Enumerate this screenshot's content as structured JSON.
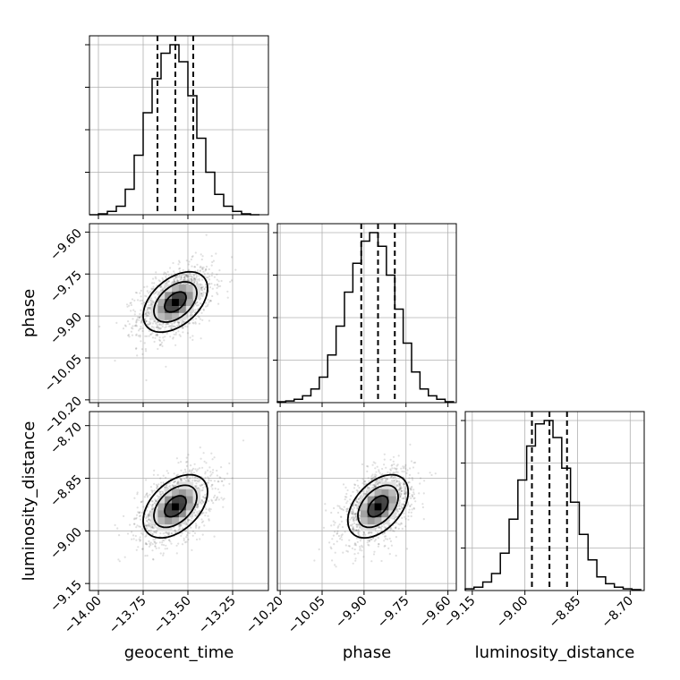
{
  "chart_data": {
    "type": "corner",
    "parameters": [
      {
        "name": "geocent_time",
        "label": "geocent_time",
        "range": [
          -14.05,
          -13.05
        ],
        "ticks": [
          -14.0,
          -13.75,
          -13.5,
          -13.25
        ],
        "tick_labels": [
          "−14.00",
          "−13.75",
          "−13.50",
          "−13.25"
        ],
        "mean": -13.57,
        "sigma": 0.1,
        "quantiles": [
          -13.67,
          -13.57,
          -13.47
        ]
      },
      {
        "name": "phase",
        "label": "phase",
        "range": [
          -10.21,
          -9.57
        ],
        "ticks": [
          -10.2,
          -10.05,
          -9.9,
          -9.75,
          -9.6
        ],
        "tick_labels": [
          "−10.20",
          "−10.05",
          "−9.90",
          "−9.75",
          "−9.60"
        ],
        "mean": -9.85,
        "sigma": 0.06,
        "quantiles": [
          -9.91,
          -9.85,
          -9.79
        ]
      },
      {
        "name": "luminosity_distance",
        "label": "luminosity_distance",
        "range": [
          -9.17,
          -8.66
        ],
        "ticks": [
          -9.15,
          -9.0,
          -8.85,
          -8.7
        ],
        "tick_labels": [
          "−9.15",
          "−9.00",
          "−8.85",
          "−8.70"
        ],
        "mean": -8.93,
        "sigma": 0.05,
        "quantiles": [
          -8.98,
          -8.93,
          -8.88
        ]
      }
    ],
    "histograms": [
      {
        "param": "geocent_time",
        "bin_edges": [
          -14.05,
          -14.0,
          -13.95,
          -13.9,
          -13.85,
          -13.8,
          -13.75,
          -13.7,
          -13.65,
          -13.6,
          -13.55,
          -13.5,
          -13.45,
          -13.4,
          -13.35,
          -13.3,
          -13.25,
          -13.2,
          -13.15,
          -13.1
        ],
        "counts": [
          0.0,
          0.005,
          0.02,
          0.05,
          0.15,
          0.35,
          0.6,
          0.8,
          0.95,
          1.0,
          0.9,
          0.7,
          0.45,
          0.25,
          0.12,
          0.05,
          0.02,
          0.005,
          0.0
        ]
      },
      {
        "param": "phase",
        "bin_edges": [
          -10.21,
          -10.18,
          -10.15,
          -10.12,
          -10.09,
          -10.06,
          -10.03,
          -10.0,
          -9.97,
          -9.94,
          -9.91,
          -9.88,
          -9.85,
          -9.82,
          -9.79,
          -9.76,
          -9.73,
          -9.7,
          -9.67,
          -9.64,
          -9.61,
          -9.58
        ],
        "counts": [
          0.005,
          0.01,
          0.02,
          0.04,
          0.08,
          0.15,
          0.28,
          0.45,
          0.65,
          0.82,
          0.95,
          1.0,
          0.92,
          0.75,
          0.55,
          0.35,
          0.18,
          0.08,
          0.04,
          0.02,
          0.005
        ]
      },
      {
        "param": "luminosity_distance",
        "bin_edges": [
          -9.17,
          -9.145,
          -9.12,
          -9.095,
          -9.07,
          -9.045,
          -9.02,
          -8.995,
          -8.97,
          -8.945,
          -8.92,
          -8.895,
          -8.87,
          -8.845,
          -8.82,
          -8.795,
          -8.77,
          -8.745,
          -8.72,
          -8.695,
          -8.67
        ],
        "counts": [
          0.01,
          0.02,
          0.05,
          0.1,
          0.22,
          0.42,
          0.65,
          0.85,
          0.98,
          1.0,
          0.9,
          0.72,
          0.52,
          0.33,
          0.18,
          0.08,
          0.04,
          0.02,
          0.01,
          0.005
        ]
      }
    ],
    "correlations": {
      "geocent_time__phase": 0.45,
      "geocent_time__luminosity_distance": 0.45,
      "phase__luminosity_distance": 0.45
    },
    "contour_levels_sigma": [
      0.6,
      1.2,
      1.8
    ],
    "grid": true,
    "colors": {
      "data": "#000000",
      "grid": "#b0b0b0",
      "scatter": "#555555"
    }
  }
}
